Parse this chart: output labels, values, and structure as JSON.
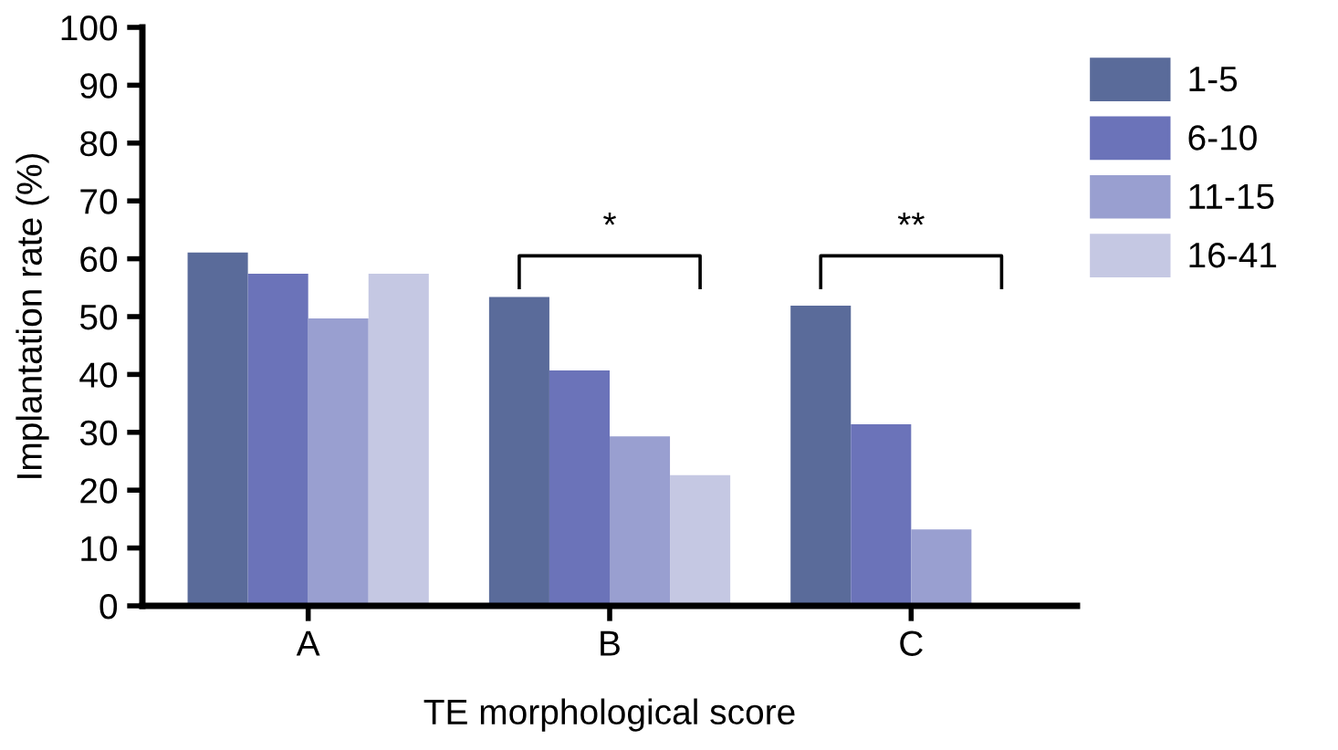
{
  "chart_data": {
    "type": "bar",
    "xlabel": "TE morphological score",
    "ylabel": "Implantation rate (%)",
    "categories": [
      "A",
      "B",
      "C"
    ],
    "series": [
      {
        "name": "1-5",
        "color": "#5a6b9a",
        "values": [
          61.1,
          53.4,
          51.9
        ]
      },
      {
        "name": "6-10",
        "color": "#6b73b9",
        "values": [
          57.4,
          40.7,
          31.4
        ]
      },
      {
        "name": "11-15",
        "color": "#999fd0",
        "values": [
          49.7,
          29.3,
          13.2
        ]
      },
      {
        "name": "16-41",
        "color": "#c5c8e3",
        "values": [
          57.4,
          22.6,
          null
        ]
      }
    ],
    "ylim": [
      0,
      100
    ],
    "yticks": [
      0,
      10,
      20,
      30,
      40,
      50,
      60,
      70,
      80,
      90,
      100
    ],
    "grid": false,
    "legend": "top right",
    "annotations": [
      "*",
      "**"
    ]
  }
}
